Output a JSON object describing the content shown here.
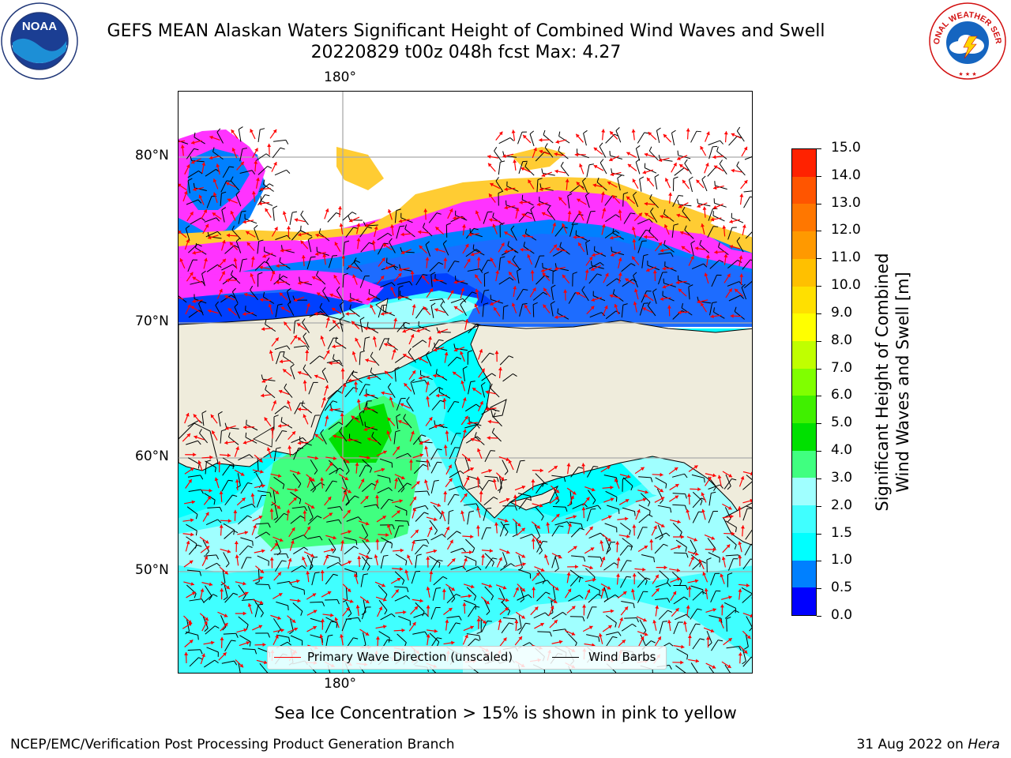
{
  "header": {
    "title_line1": "GEFS MEAN Alaskan Waters Significant Height of Combined Wind Waves and Swell",
    "title_line2": "20220829 t00z 048h fcst   Max: 4.27"
  },
  "logos": {
    "left_text": "NOAA",
    "left_ring_text": "NATIONAL OCEANIC AND ATMOSPHERIC ADMINISTRATION · U.S. DEPARTMENT OF COMMERCE",
    "right_ring_text": "NATIONAL WEATHER SERVICE"
  },
  "map": {
    "lon_label_top": "180°",
    "lon_label_bottom": "180°",
    "lat_labels": [
      "80°N",
      "70°N",
      "60°N",
      "50°N"
    ],
    "land_color": "#efecdc",
    "ice_colors": [
      "#ff33ff",
      "#ffcc33"
    ]
  },
  "colorbar": {
    "label_line1": "Significant Height of Combined",
    "label_line2": "Wind Waves and Swell [m]",
    "ticks": [
      "15.0",
      "14.0",
      "13.0",
      "12.0",
      "11.0",
      "10.0",
      "9.0",
      "8.0",
      "7.0",
      "6.0",
      "5.0",
      "4.0",
      "3.0",
      "2.0",
      "1.5",
      "1.0",
      "0.5",
      "0.0"
    ],
    "colors_bottom_to_top": [
      "#0000ff",
      "#0080ff",
      "#00ffff",
      "#40ffff",
      "#a0ffff",
      "#40ff80",
      "#00e000",
      "#40f000",
      "#80ff00",
      "#c0ff00",
      "#ffff00",
      "#ffe000",
      "#ffc000",
      "#ff9900",
      "#ff7700",
      "#ff5500",
      "#ff2200"
    ]
  },
  "legend": {
    "wave_label": "Primary Wave Direction (unscaled)",
    "wave_color": "#ff0000",
    "barb_label": "Wind Barbs",
    "barb_color": "#000000"
  },
  "note": "Sea Ice Concentration > 15% is shown in pink to yellow",
  "footer": {
    "left": "NCEP/EMC/Verification Post Processing Product Generation Branch",
    "right_date": "31 Aug 2022 on",
    "right_host": "Hera"
  }
}
